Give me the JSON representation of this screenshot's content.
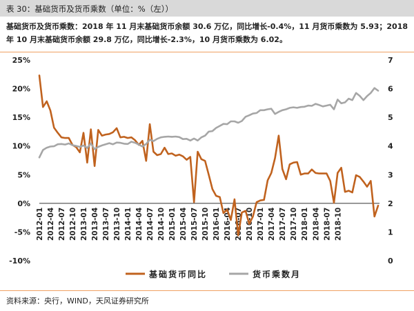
{
  "header": {
    "title": "表 30：基础货币及货币乘数（单位：%（左））"
  },
  "description": "基础货币及货币乘数：2018 年 11 月末基础货币余额 30.6 万亿，同比增长-0.4%，11 月货币乘数为 5.93；2018 年 10 月末基础货币余额 29.8 万亿，同比增长-2.3%，10 月货币乘数为 6.02。",
  "footer": {
    "source": "资料来源：央行，WIND，天风证券研究所"
  },
  "colors": {
    "base_money": "#c0621e",
    "multiplier": "#a6a6a6",
    "separator": "#f0a060"
  },
  "chart_data": {
    "type": "line",
    "title": "",
    "x_start": "2012-01",
    "x_tick_labels": [
      "2012-01",
      "2012-04",
      "2012-07",
      "2012-10",
      "2013-01",
      "2013-04",
      "2013-07",
      "2013-10",
      "2014-01",
      "2014-04",
      "2014-07",
      "2014-10",
      "2015-01",
      "2015-04",
      "2015-07",
      "2015-10",
      "2016-01",
      "2016-04",
      "2016-07",
      "2016-10",
      "2017-01",
      "2017-04",
      "2017-07",
      "2017-10",
      "2018-01",
      "2018-04",
      "2018-07",
      "2018-10"
    ],
    "y_left": {
      "ticks": [
        "25%",
        "20%",
        "15%",
        "10%",
        "5%",
        "0%",
        "-5%",
        "-10%"
      ],
      "ylim": [
        -10,
        25
      ]
    },
    "y_right": {
      "ticks": [
        "7",
        "6",
        "5",
        "4",
        "3",
        "2",
        "1",
        "0"
      ],
      "ylim": [
        0,
        7
      ]
    },
    "legend": {
      "position": "bottom",
      "entries": [
        "基础货币同比",
        "货币乘数月"
      ]
    },
    "series": [
      {
        "name": "基础货币同比",
        "axis": "left",
        "values": [
          22.3,
          16.8,
          17.8,
          16.2,
          13.2,
          12.3,
          11.5,
          11.4,
          11.4,
          10.2,
          9.8,
          8.9,
          12.3,
          7.1,
          12.9,
          6.5,
          12.8,
          11.8,
          12.0,
          12.1,
          12.4,
          13.1,
          11.5,
          11.6,
          11.4,
          11.5,
          11.0,
          10.2,
          10.9,
          7.4,
          13.8,
          9.0,
          8.4,
          8.6,
          9.7,
          8.6,
          8.7,
          8.3,
          8.5,
          8.2,
          7.6,
          8.1,
          0.2,
          9.0,
          7.7,
          7.4,
          5.0,
          2.5,
          1.3,
          1.1,
          -1.7,
          -1.1,
          -2.9,
          0.7,
          -5.6,
          -1.6,
          -1.3,
          -3.6,
          -2.3,
          0.2,
          0.5,
          0.6,
          4.0,
          5.3,
          7.9,
          11.8,
          6.0,
          4.2,
          6.8,
          7.1,
          7.2,
          5.0,
          5.2,
          5.2,
          5.9,
          5.3,
          5.2,
          5.2,
          5.2,
          3.9,
          0.1,
          5.3,
          6.2,
          2.0,
          2.2,
          1.9,
          4.9,
          4.6,
          3.8,
          2.9,
          3.9,
          -2.3,
          -0.4
        ]
      },
      {
        "name": "货币乘数月",
        "axis": "right",
        "values": [
          3.6,
          3.86,
          3.94,
          3.98,
          3.99,
          4.06,
          4.07,
          4.05,
          4.09,
          4.03,
          4.0,
          3.97,
          4.02,
          3.93,
          4.09,
          3.89,
          3.97,
          4.02,
          4.06,
          4.1,
          4.06,
          4.12,
          4.11,
          4.08,
          4.07,
          4.15,
          4.11,
          4.05,
          3.98,
          4.07,
          4.22,
          4.17,
          4.25,
          4.3,
          4.32,
          4.33,
          4.32,
          4.33,
          4.31,
          4.24,
          4.25,
          4.19,
          4.26,
          4.19,
          4.3,
          4.36,
          4.5,
          4.52,
          4.63,
          4.7,
          4.77,
          4.76,
          4.86,
          4.86,
          4.81,
          4.87,
          5.02,
          5.07,
          5.13,
          5.15,
          5.25,
          5.25,
          5.28,
          5.3,
          5.12,
          5.19,
          5.25,
          5.28,
          5.33,
          5.35,
          5.33,
          5.36,
          5.37,
          5.41,
          5.4,
          5.47,
          5.43,
          5.38,
          5.41,
          5.44,
          5.28,
          5.62,
          5.49,
          5.52,
          5.65,
          5.6,
          5.85,
          5.75,
          5.6,
          5.74,
          5.85,
          6.02,
          5.93
        ]
      }
    ]
  }
}
